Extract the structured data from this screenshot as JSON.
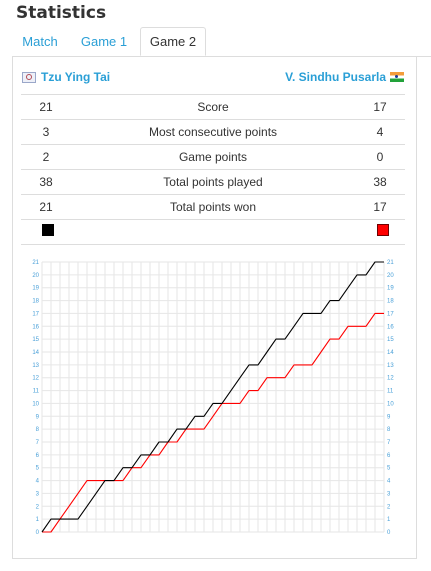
{
  "heading": "Statistics",
  "tabs": [
    {
      "label": "Match",
      "active": false
    },
    {
      "label": "Game 1",
      "active": false
    },
    {
      "label": "Game 2",
      "active": true
    }
  ],
  "players": {
    "left": {
      "name": "Tzu Ying Tai",
      "flag_icon": "taiwan-flag-icon"
    },
    "right": {
      "name": "V. Sindhu Pusarla",
      "flag_icon": "india-flag-icon"
    }
  },
  "stats": [
    {
      "left": "21",
      "label": "Score",
      "right": "17"
    },
    {
      "left": "3",
      "label": "Most consecutive points",
      "right": "4"
    },
    {
      "left": "2",
      "label": "Game points",
      "right": "0"
    },
    {
      "left": "38",
      "label": "Total points played",
      "right": "38"
    },
    {
      "left": "21",
      "label": "Total points won",
      "right": "17"
    }
  ],
  "colors": {
    "left_player": "#000000",
    "right_player": "#ff0000",
    "accent": "#2a9fd6"
  },
  "chart_data": {
    "type": "line",
    "title": "",
    "xlabel": "",
    "ylabel": "",
    "ylim": [
      0,
      21
    ],
    "yticks": [
      0,
      1,
      2,
      3,
      4,
      5,
      6,
      7,
      8,
      9,
      10,
      11,
      12,
      13,
      14,
      15,
      16,
      17,
      18,
      19,
      20,
      21
    ],
    "grid": true,
    "x": [
      0,
      1,
      2,
      3,
      4,
      5,
      6,
      7,
      8,
      9,
      10,
      11,
      12,
      13,
      14,
      15,
      16,
      17,
      18,
      19,
      20,
      21,
      22,
      23,
      24,
      25,
      26,
      27,
      28,
      29,
      30,
      31,
      32,
      33,
      34,
      35,
      36,
      37,
      38
    ],
    "series": [
      {
        "name": "Tzu Ying Tai",
        "color": "#000000",
        "values": [
          0,
          1,
          1,
          1,
          1,
          2,
          3,
          4,
          4,
          5,
          5,
          6,
          6,
          7,
          7,
          8,
          8,
          9,
          9,
          10,
          10,
          11,
          12,
          13,
          13,
          14,
          15,
          15,
          16,
          17,
          17,
          17,
          18,
          18,
          19,
          20,
          20,
          21,
          21
        ]
      },
      {
        "name": "V. Sindhu Pusarla",
        "color": "#ff0000",
        "values": [
          0,
          0,
          1,
          2,
          3,
          4,
          4,
          4,
          4,
          4,
          5,
          5,
          6,
          6,
          7,
          7,
          8,
          8,
          8,
          9,
          10,
          10,
          10,
          11,
          11,
          12,
          12,
          12,
          13,
          13,
          13,
          14,
          15,
          15,
          16,
          16,
          16,
          17,
          17
        ]
      }
    ]
  }
}
